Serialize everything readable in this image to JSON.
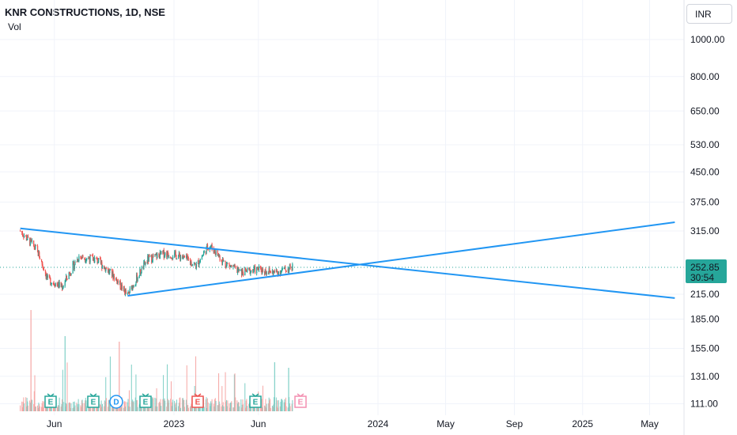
{
  "header": {
    "symbol_title": "KNR CONSTRUCTIONS, 1D, NSE",
    "volume_label": "Vol",
    "currency": "INR"
  },
  "price_badge": {
    "price": "252.85",
    "countdown": "30:54",
    "color": "#26a69a"
  },
  "colors": {
    "up": "#26a69a",
    "down": "#ef5350",
    "trendline": "#2196f3",
    "grid": "#f0f3fa",
    "volume_up": "#7fcfc6",
    "volume_down": "#f6a6a4"
  },
  "chart_data": {
    "type": "candlestick",
    "title": "KNR CONSTRUCTIONS, 1D, NSE",
    "y_scale": "log",
    "y_ticks": [
      "1000.00",
      "800.00",
      "650.00",
      "530.00",
      "450.00",
      "375.00",
      "315.00",
      "252.85",
      "215.00",
      "185.00",
      "155.00",
      "131.00",
      "111.00"
    ],
    "x_ticks": [
      "Jun",
      "2023",
      "Jun",
      "2024",
      "May",
      "Sep",
      "2025",
      "May"
    ],
    "last_price": 252.85,
    "price_path_approx": [
      {
        "date": "2022-04-01",
        "close": 315
      },
      {
        "date": "2022-05-01",
        "close": 280
      },
      {
        "date": "2022-05-20",
        "close": 235
      },
      {
        "date": "2022-06-15",
        "close": 225
      },
      {
        "date": "2022-07-15",
        "close": 270
      },
      {
        "date": "2022-08-15",
        "close": 265
      },
      {
        "date": "2022-09-15",
        "close": 240
      },
      {
        "date": "2022-10-10",
        "close": 213
      },
      {
        "date": "2022-11-15",
        "close": 265
      },
      {
        "date": "2022-12-15",
        "close": 275
      },
      {
        "date": "2023-01-15",
        "close": 270
      },
      {
        "date": "2023-02-10",
        "close": 255
      },
      {
        "date": "2023-03-05",
        "close": 290
      },
      {
        "date": "2023-04-01",
        "close": 260
      },
      {
        "date": "2023-05-01",
        "close": 245
      },
      {
        "date": "2023-06-01",
        "close": 250
      },
      {
        "date": "2023-07-01",
        "close": 245
      },
      {
        "date": "2023-08-01",
        "close": 252.85
      }
    ],
    "trendlines": [
      {
        "from": {
          "date": "2022-04-01",
          "price": 320
        },
        "to": {
          "date": "2025-06-15",
          "price": 210
        }
      },
      {
        "from": {
          "date": "2022-10-10",
          "price": 213
        },
        "to": {
          "date": "2025-06-15",
          "price": 332
        }
      }
    ],
    "event_markers": [
      {
        "label": "E",
        "color": "#26a69a"
      },
      {
        "label": "E",
        "color": "#26a69a"
      },
      {
        "label": "D",
        "color": "#2196f3"
      },
      {
        "label": "E",
        "color": "#26a69a"
      },
      {
        "label": "E",
        "color": "#ef5350"
      },
      {
        "label": "E",
        "color": "#26a69a"
      },
      {
        "label": "E",
        "color": "#f48fb1"
      }
    ]
  }
}
